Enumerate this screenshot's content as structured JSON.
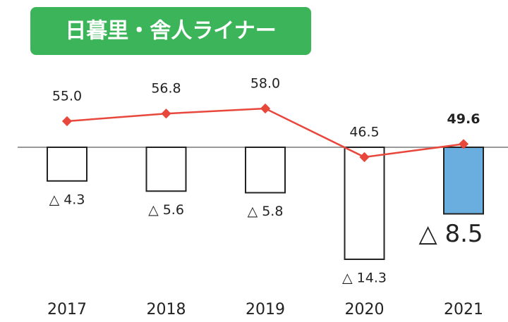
{
  "chart_data": {
    "type": "combo",
    "title": "日暮里・舎人ライナー",
    "categories": [
      "2017",
      "2018",
      "2019",
      "2020",
      "2021"
    ],
    "line": {
      "color": "#e8473c",
      "values": [
        55.0,
        56.8,
        58.0,
        46.5,
        49.6
      ],
      "value_labels": [
        "55.0",
        "56.8",
        "58.0",
        "46.5",
        "49.6"
      ]
    },
    "bars": {
      "colors": [
        "#ffffff",
        "#ffffff",
        "#ffffff",
        "#ffffff",
        "#6aaee0"
      ],
      "values": [
        -4.3,
        -5.6,
        -5.8,
        -14.3,
        -8.5
      ],
      "value_labels": [
        "△ 4.3",
        "△ 5.6",
        "△ 5.8",
        "△ 14.3",
        "△ 8.5"
      ]
    }
  }
}
